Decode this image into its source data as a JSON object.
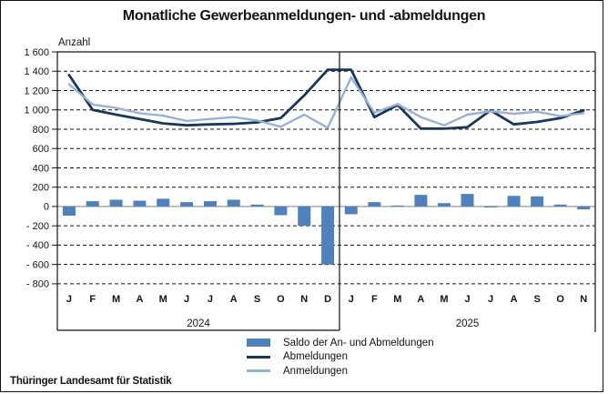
{
  "header": {
    "title": "Monatliche Gewerbeanmeldungen- und -abmeldungen"
  },
  "footer": {
    "source": "Thüringer Landesamt für Statistik"
  },
  "chart_data": {
    "type": "combo-bar-line",
    "title": "Monatliche Gewerbeanmeldungen- und -abmeldungen",
    "ylabel": "Anzahl",
    "ylim": [
      -800,
      1600
    ],
    "ytick_step": 200,
    "ytick_labels": [
      "1 600",
      "1 400",
      "1 200",
      "1 000",
      "800",
      "600",
      "400",
      "200",
      "0",
      "- 200",
      "- 400",
      "- 600",
      "- 800"
    ],
    "grid": "dashed-horizontal",
    "legend_position": "bottom-center",
    "zero_line_color": "#a6a6a6",
    "groups": [
      {
        "year": "2024",
        "months": [
          "J",
          "F",
          "M",
          "A",
          "M",
          "J",
          "J",
          "A",
          "S",
          "O",
          "N",
          "D"
        ]
      },
      {
        "year": "2025",
        "months": [
          "J",
          "F",
          "M",
          "A",
          "M",
          "J",
          "J",
          "A",
          "S",
          "O",
          "N"
        ]
      }
    ],
    "series": [
      {
        "name": "Saldo der An- und Abmeldungen",
        "type": "bar",
        "color": "#4f81bd",
        "values": [
          -95,
          55,
          70,
          60,
          80,
          45,
          55,
          70,
          20,
          -90,
          -200,
          -600,
          -80,
          45,
          10,
          120,
          35,
          130,
          -10,
          110,
          105,
          20,
          -30
        ]
      },
      {
        "name": "Abmeldungen",
        "type": "line",
        "color": "#17375e",
        "values": [
          1360,
          1000,
          950,
          905,
          860,
          840,
          850,
          855,
          870,
          915,
          1150,
          1415,
          1415,
          925,
          1050,
          805,
          805,
          820,
          995,
          850,
          875,
          915,
          995
        ]
      },
      {
        "name": "Anmeldungen",
        "type": "line",
        "color": "#95b3d7",
        "values": [
          1265,
          1055,
          1020,
          965,
          940,
          885,
          905,
          925,
          890,
          825,
          950,
          815,
          1335,
          970,
          1060,
          925,
          840,
          950,
          985,
          960,
          980,
          935,
          965
        ]
      }
    ]
  }
}
